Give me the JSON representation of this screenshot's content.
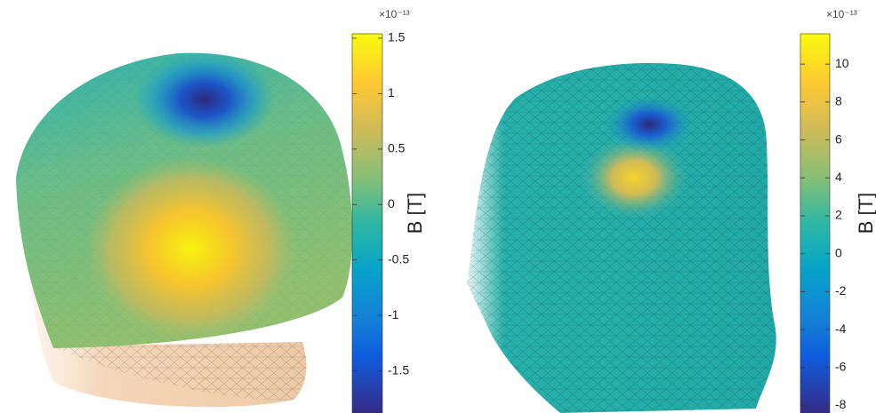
{
  "chart_data": [
    {
      "type": "colorbar",
      "ylabel": "B [T]",
      "offset_label": "×10⁻¹³",
      "ylim": [
        -1.88,
        1.54
      ],
      "yticks": [
        1.5,
        1,
        0.5,
        0,
        -0.5,
        -1,
        -1.5
      ]
    },
    {
      "type": "colorbar",
      "ylabel": "B [T]",
      "offset_label": "×10⁻¹³",
      "ylim": [
        -8.4,
        11.6
      ],
      "yticks": [
        10,
        8,
        6,
        4,
        2,
        0,
        -2,
        -4,
        -6,
        -8
      ]
    }
  ]
}
